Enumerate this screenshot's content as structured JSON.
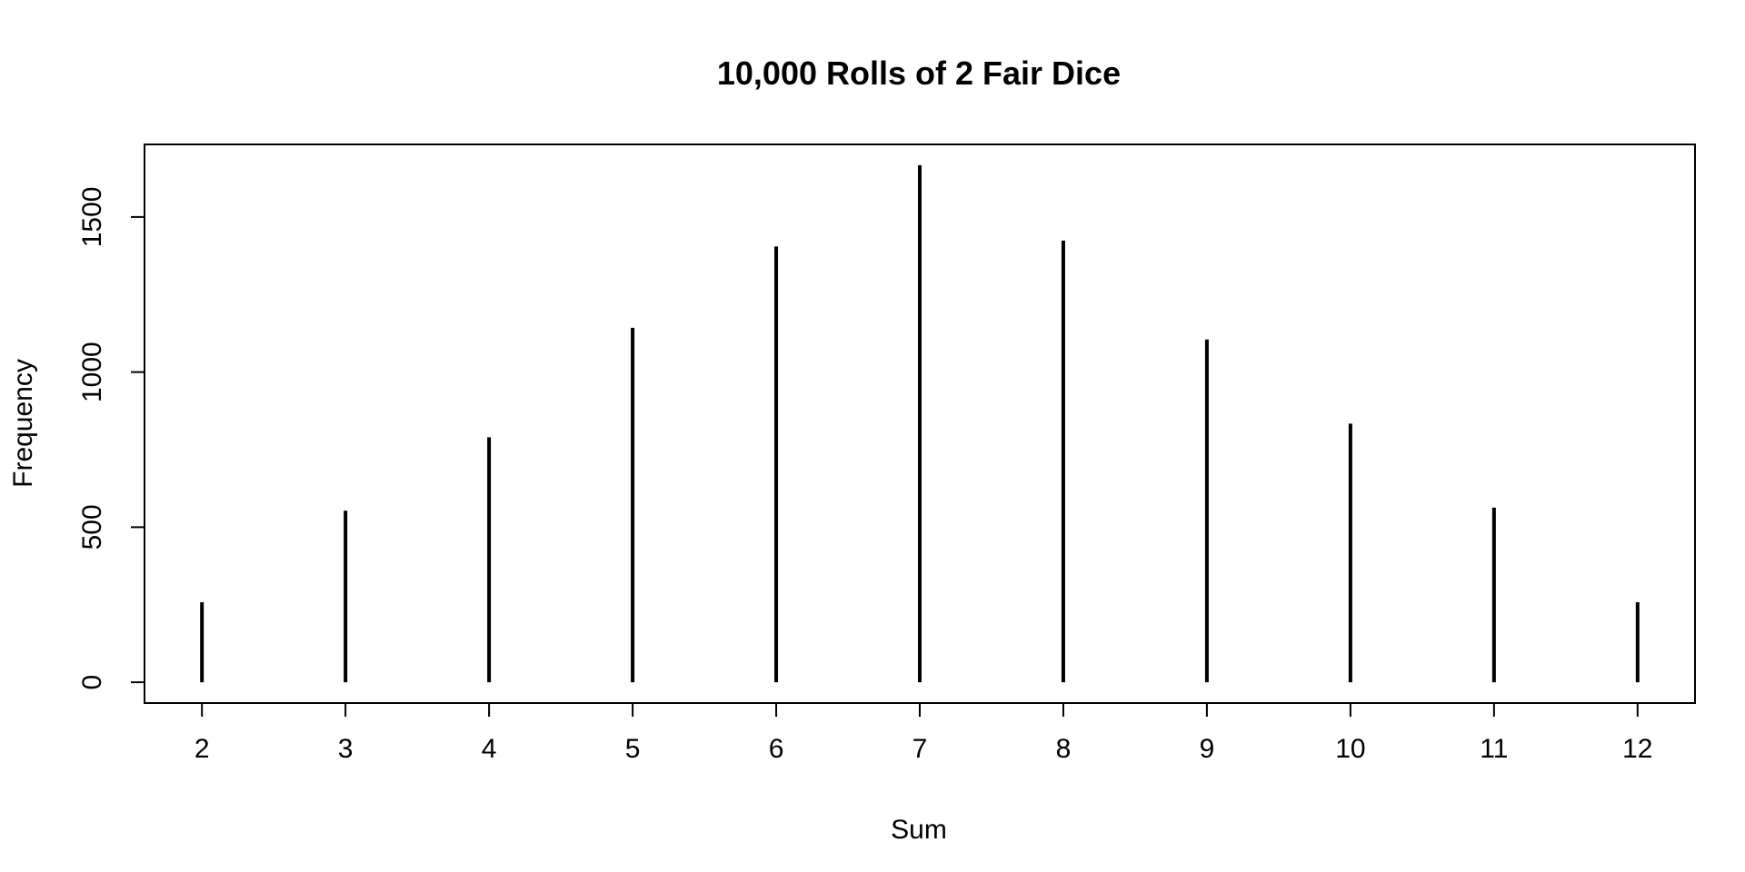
{
  "chart_data": {
    "type": "bar",
    "style": "spike",
    "title": "10,000 Rolls of 2 Fair Dice",
    "xlabel": "Sum",
    "ylabel": "Frequency",
    "categories": [
      "2",
      "3",
      "4",
      "5",
      "6",
      "7",
      "8",
      "9",
      "10",
      "11",
      "12"
    ],
    "x": [
      2,
      3,
      4,
      5,
      6,
      7,
      8,
      9,
      10,
      11,
      12
    ],
    "values": [
      258,
      553,
      790,
      1143,
      1405,
      1667,
      1424,
      1105,
      834,
      563,
      258
    ],
    "xlim": [
      1.6,
      12.4
    ],
    "ylim": [
      -67,
      1734
    ],
    "y_ticks": [
      0,
      500,
      1000,
      1500
    ],
    "y_tick_labels": [
      "0",
      "500",
      "1000",
      "1500"
    ],
    "grid": false,
    "legend": "none",
    "colors": {
      "line": "#000000",
      "background": "#ffffff"
    }
  }
}
